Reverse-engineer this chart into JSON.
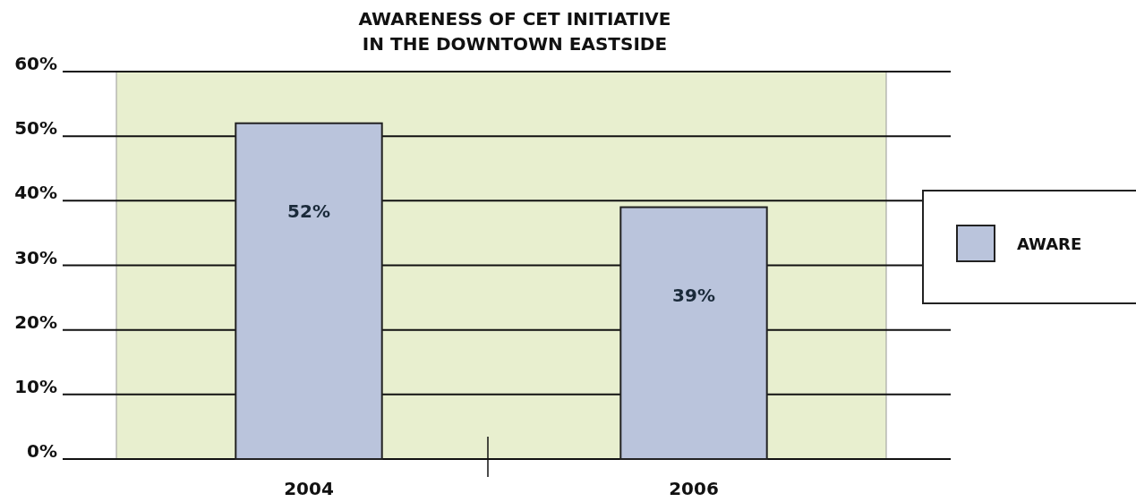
{
  "chart_data": {
    "type": "bar",
    "title": "AWARENESS OF CET INITIATIVE\nIN THE DOWNTOWN EASTSIDE",
    "categories": [
      "2004",
      "2006"
    ],
    "series": [
      {
        "name": "AWARE",
        "color": "#bac4dc",
        "values": [
          52,
          39
        ],
        "value_labels": [
          "52%",
          "39%"
        ]
      }
    ],
    "ylim": [
      0,
      60
    ],
    "yticks": [
      {
        "value": 0,
        "label": "0%"
      },
      {
        "value": 10,
        "label": "10%"
      },
      {
        "value": 20,
        "label": "20%"
      },
      {
        "value": 30,
        "label": "30%"
      },
      {
        "value": 40,
        "label": "40%"
      },
      {
        "value": 50,
        "label": "50%"
      },
      {
        "value": 60,
        "label": "60%"
      }
    ],
    "grid": "y",
    "legend": "right"
  }
}
